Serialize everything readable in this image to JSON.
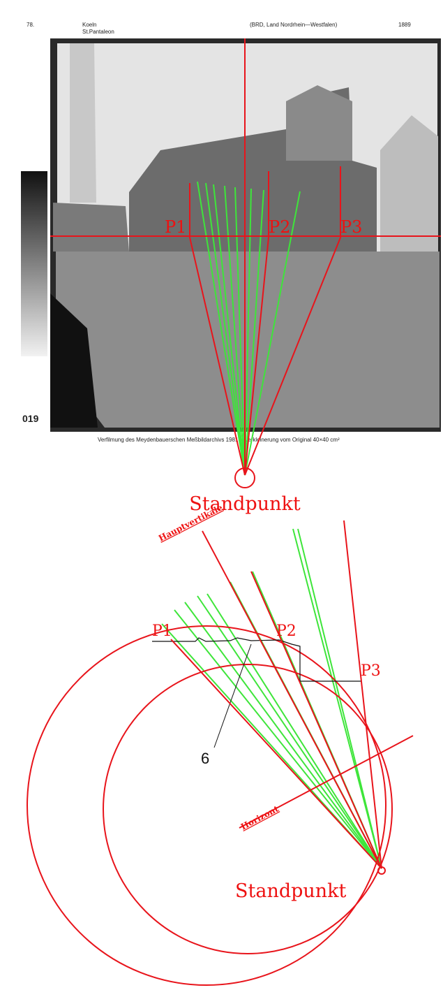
{
  "header": {
    "number": "78.",
    "city": "Koeln",
    "place": "St.Pantaleon",
    "region": "(BRD, Land Nordrhein—Westfalen)",
    "year": "1889"
  },
  "photo": {
    "plate": "019",
    "caption": "Verfilmung des Meydenbauerschen Meßbildarchivs 1981 – Verkleinerung vom Original 40×40 cm²",
    "points": [
      "P1",
      "P2",
      "P3"
    ],
    "station": "Standpunkt"
  },
  "plan": {
    "points": [
      "P1",
      "P2",
      "P3"
    ],
    "main_vertical": "Hauptvertikale",
    "horizon": "Horizont",
    "callout": "6",
    "station": "Standpunkt"
  }
}
